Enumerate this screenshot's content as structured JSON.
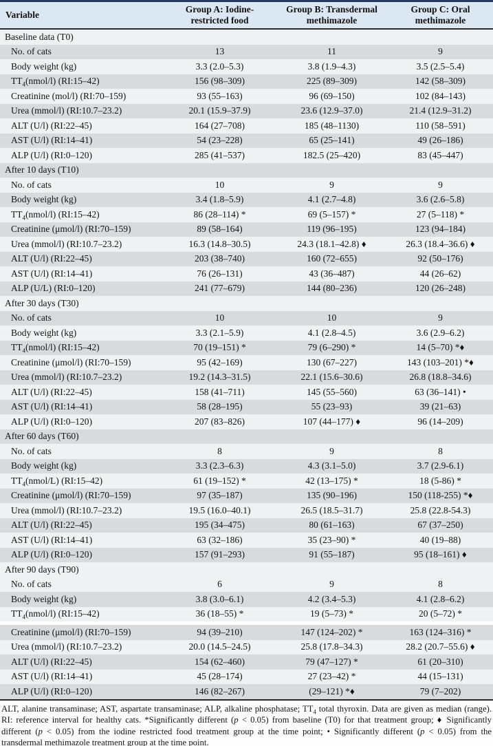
{
  "header": {
    "variable_label": "Variable",
    "groups": [
      {
        "line1": "Group A: Iodine-",
        "line2": "restricted food"
      },
      {
        "line1": "Group B: Transdermal",
        "line2": "methimazole"
      },
      {
        "line1": "Group C: Oral",
        "line2": "methimazole"
      }
    ]
  },
  "table": {
    "sections": [
      {
        "title": "Baseline data (T0)",
        "rows": [
          {
            "label": "No. of cats",
            "a": "13",
            "b": "11",
            "c": "9"
          },
          {
            "label": "Body weight (kg)",
            "a": "3.3 (2.0–5.3)",
            "b": "3.8 (1.9–4.3)",
            "c": "3.5 (2.5–5.4)"
          },
          {
            "label": "TT₄(nmol/l) (RI:15–42)",
            "a": "156 (98–309)",
            "b": "225 (89–309)",
            "c": "142 (58–309)"
          },
          {
            "label": "Creatinine (mol/l) (RI:70–159)",
            "a": "93 (55–163)",
            "b": "96 (69–150)",
            "c": "102 (84–143)"
          },
          {
            "label": "Urea (mmol/l) (RI:10.7–23.2)",
            "a": "20.1 (15.9–37.9)",
            "b": "23.6 (12.9–37.0)",
            "c": "21.4 (12.9–31.2)"
          },
          {
            "label": "ALT (U/l) (RI:22–45)",
            "a": "164 (27–708)",
            "b": "185 (48–1130)",
            "c": "110 (58–591)"
          },
          {
            "label": "AST (U/l) (RI:14–41)",
            "a": "54 (23–228)",
            "b": "65 (25–141)",
            "c": "49 (26–186)"
          },
          {
            "label": "ALP (U/l) (RI:0–120)",
            "a": "285 (41–537)",
            "b": "182.5 (25–420)",
            "c": "83 (45–447)"
          }
        ]
      },
      {
        "title": "After 10 days (T10)",
        "rows": [
          {
            "label": "No. of cats",
            "a": "10",
            "b": "9",
            "c": "9"
          },
          {
            "label": "Body weight (kg)",
            "a": "3.4 (1.8–5.9)",
            "b": "4.1 (2.7–4.8)",
            "c": "3.6 (2.6–5.8)"
          },
          {
            "label": "TT₄(nmol/l) (RI:15–42)",
            "a": "86 (28–114) *",
            "b": "69 (5–157) *",
            "c": "27 (5–118) *"
          },
          {
            "label": "Creatinine (μmol/l) (RI:70–159)",
            "a": "89 (58–164)",
            "b": "119 (96–195)",
            "c": "123 (94–184)"
          },
          {
            "label": "Urea (mmol/l) (RI:10.7–23.2)",
            "a": "16.3 (14.8–30.5)",
            "b": "24.3 (18.1–42.8) ♦",
            "c": "26.3 (18.4–36.6) ♦"
          },
          {
            "label": "ALT (U/l) (RI:22–45)",
            "a": "203 (38–740)",
            "b": "160 (72–655)",
            "c": "92 (50–176)"
          },
          {
            "label": "AST (U/l) (RI:14–41)",
            "a": "76 (26–131)",
            "b": "43 (36–487)",
            "c": "44 (26–62)"
          },
          {
            "label": "ALP (U/L) (RI:0–120)",
            "a": "241 (77–679)",
            "b": "144 (80–236)",
            "c": "120 (26–248)"
          }
        ]
      },
      {
        "title": "After 30 days (T30)",
        "rows": [
          {
            "label": "No. of cats",
            "a": "10",
            "b": "10",
            "c": "9"
          },
          {
            "label": "Body weight (kg)",
            "a": "3.3 (2.1–5.9)",
            "b": "4.1 (2.8–4.5)",
            "c": "3.6 (2.9–6.2)"
          },
          {
            "label": "TT₄(nmol/l) (RI:15–42)",
            "a": "70 (19–151) *",
            "b": "79 (6–290) *",
            "c": "14 (5–70) *♦"
          },
          {
            "label": "Creatinine (μmol/l) (RI:70–159)",
            "a": "95 (42–169)",
            "b": "130 (67–227)",
            "c": "143 (103–201) *♦"
          },
          {
            "label": "Urea (mmol/l) (RI:10.7–23.2)",
            "a": "19.2 (14.3–31.5)",
            "b": "22.1 (15.6–30.6)",
            "c": "26.8 (18.8–34.6)"
          },
          {
            "label": "ALT (U/l) (RI:22–45)",
            "a": "158 (41–711)",
            "b": "145 (55–560)",
            "c": "63 (36–141) •"
          },
          {
            "label": "AST (U/l) (RI:14–41)",
            "a": "58 (28–195)",
            "b": "55 (23–93)",
            "c": "39 (21–63)"
          },
          {
            "label": "ALP (U/l) (RI:0–120)",
            "a": "207 (83–826)",
            "b": "107 (44–177) ♦",
            "c": "96 (14–209)"
          }
        ]
      },
      {
        "title": "After 60 days (T60)",
        "rows": [
          {
            "label": "No. of cats",
            "a": "8",
            "b": "9",
            "c": "8"
          },
          {
            "label": "Body weight (kg)",
            "a": "3.3 (2.3–6.3)",
            "b": "4.3 (3.1–5.0)",
            "c": "3.7 (2.9-6.1)"
          },
          {
            "label": "TT₄(nmol/L) (RI:15–42)",
            "a": "61 (19–152) *",
            "b": "42 (13–175) *",
            "c": "18 (5-86) *"
          },
          {
            "label": "Creatinine (μmol/l) (RI:70–159)",
            "a": "97 (35–187)",
            "b": "135 (90–196)",
            "c": "150 (118-255) *♦"
          },
          {
            "label": "Urea (mmol/l) (RI:10.7–23.2)",
            "a": "19.5 (16.0–40.1)",
            "b": "26.5 (18.5–31.7)",
            "c": "25.8 (22.8-54.3)"
          },
          {
            "label": "ALT (U/l) (RI:22–45)",
            "a": "195 (34–475)",
            "b": "80 (61–163)",
            "c": "67 (37–250)"
          },
          {
            "label": "AST (U/l) (RI:14–41)",
            "a": "63 (32–186)",
            "b": "35 (23–90) *",
            "c": "40 (19–88)"
          },
          {
            "label": "ALP (U/l) (RI:0–120)",
            "a": "157 (91–293)",
            "b": "91 (55–187)",
            "c": "95 (18–161) ♦"
          }
        ]
      },
      {
        "title": "After 90 days (T90)",
        "rows": [
          {
            "label": "No. of cats",
            "a": "6",
            "b": "9",
            "c": "8"
          },
          {
            "label": "Body weight (kg)",
            "a": "3.8 (3.0–6.1)",
            "b": "4.2 (3.4–5.3)",
            "c": "4.1 (2.8–6.2)"
          },
          {
            "label": "TT₄(nmol/l) (RI:15–42)",
            "a": "36 (18–55) *",
            "b": "19 (5–73) *",
            "c": "20 (5–72) *"
          },
          {
            "label": "Creatinine (μmol/l) (RI:70–159)",
            "a": "94 (39–210)",
            "b": "147 (124–202) *",
            "c": "163 (124–316) *"
          },
          {
            "label": "Urea (mmol/l) (RI:10.7–23.2)",
            "a": "20.0 (14.5–24.5)",
            "b": "25.8 (17.8–34.3)",
            "c": "28.2 (20.7–55.6) ♦"
          },
          {
            "label": "ALT (U/l) (RI:22–45)",
            "a": "154 (62–460)",
            "b": "79 (47–127) *",
            "c": "61 (20–310)"
          },
          {
            "label": "AST (U/l) (RI:14–41)",
            "a": "45 (28–174)",
            "b": "27 (23–42) *",
            "c": "44 (15–131)"
          },
          {
            "label": "ALP (U/l) (RI:0–120)",
            "a": "146 (82–267)",
            "b": "(29–121) *♦",
            "c": "79 (7–202)"
          }
        ]
      }
    ]
  },
  "footnote_segments": [
    {
      "t": "ALT, alanine transaminase; AST, aspartate transaminase; ALP, alkaline phosphatase; TT"
    },
    {
      "t": "4",
      "sub": true
    },
    {
      "t": " total thyroxin. Data are given as median (range). RI: reference interval for healthy cats. *Significantly different ("
    },
    {
      "t": "p",
      "i": true
    },
    {
      "t": " < 0.05) from baseline (T0) for that treatment group; ♦ Significantly different ("
    },
    {
      "t": "p",
      "i": true
    },
    {
      "t": " < 0.05) from the iodine restricted food treatment group at the time point; • Significantly different ("
    },
    {
      "t": "p",
      "i": true
    },
    {
      "t": " < 0.05) from the transdermal methimazole treatment group at the time point."
    }
  ],
  "colors": {
    "header_bg": "#dbe8f4",
    "row_light": "#f0f1f3",
    "row_gray": "#d8dadd",
    "top_rule": "#21395c",
    "rule": "#2a2a2a"
  }
}
